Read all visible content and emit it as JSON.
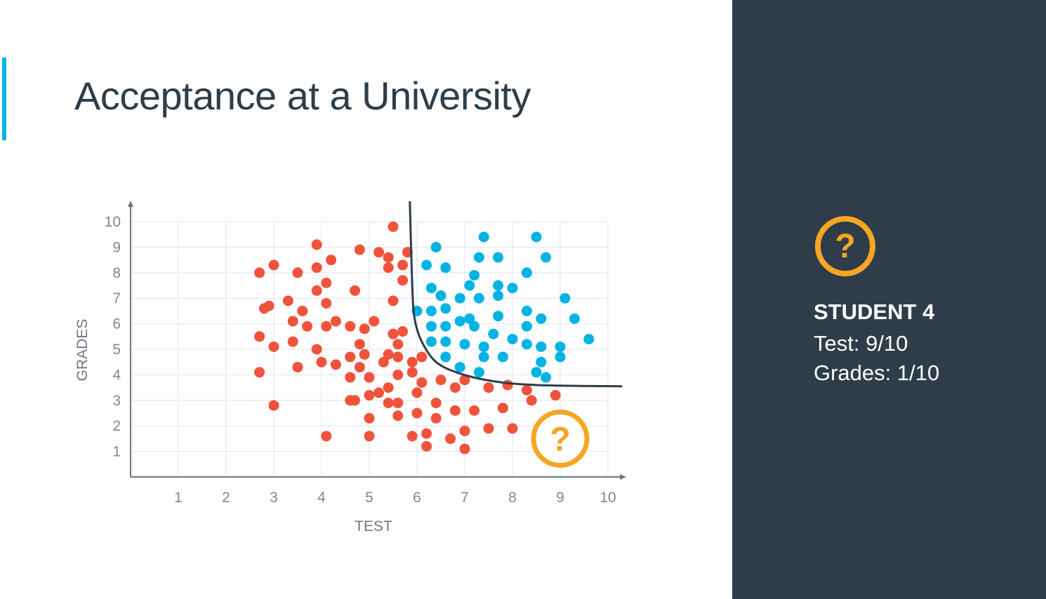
{
  "slide": {
    "title": "Acceptance at a University"
  },
  "side_panel": {
    "icon": "question-mark-circle-icon",
    "student_title": "STUDENT 4",
    "test_line": "Test: 9/10",
    "grades_line": "Grades: 1/10"
  },
  "colors": {
    "accepted": "#02b3e4",
    "rejected": "#f0533c",
    "highlight": "#f6a623",
    "boundary": "#2e3d49",
    "panel": "#2e3d49",
    "axis_text": "#7b8a99",
    "grid": "#dde4ea"
  },
  "chart_data": {
    "type": "scatter",
    "xlabel": "TEST",
    "ylabel": "GRADES",
    "xlim": [
      0,
      10
    ],
    "ylim": [
      0,
      10
    ],
    "x_ticks": [
      "1",
      "2",
      "3",
      "4",
      "5",
      "6",
      "7",
      "8",
      "9",
      "10"
    ],
    "y_ticks": [
      "1",
      "2",
      "3",
      "4",
      "5",
      "6",
      "7",
      "8",
      "9",
      "10"
    ],
    "grid": true,
    "series": [
      {
        "color": "#f0533c",
        "points": [
          [
            5.5,
            9.8
          ],
          [
            3.9,
            9.1
          ],
          [
            4.8,
            8.9
          ],
          [
            5.2,
            8.8
          ],
          [
            5.4,
            8.6
          ],
          [
            5.8,
            8.8
          ],
          [
            4.2,
            8.5
          ],
          [
            2.7,
            8.0
          ],
          [
            3.0,
            8.3
          ],
          [
            3.5,
            8.0
          ],
          [
            3.9,
            8.2
          ],
          [
            5.4,
            8.2
          ],
          [
            5.7,
            8.3
          ],
          [
            4.1,
            7.6
          ],
          [
            4.7,
            7.3
          ],
          [
            5.7,
            7.7
          ],
          [
            3.9,
            7.3
          ],
          [
            3.3,
            6.9
          ],
          [
            2.8,
            6.6
          ],
          [
            2.9,
            6.7
          ],
          [
            3.6,
            6.5
          ],
          [
            4.1,
            6.8
          ],
          [
            5.5,
            6.9
          ],
          [
            3.4,
            6.1
          ],
          [
            3.7,
            5.9
          ],
          [
            4.1,
            5.9
          ],
          [
            4.3,
            6.1
          ],
          [
            4.6,
            5.9
          ],
          [
            4.9,
            5.8
          ],
          [
            5.1,
            6.1
          ],
          [
            3.9,
            5.0
          ],
          [
            2.7,
            5.5
          ],
          [
            3.0,
            5.1
          ],
          [
            3.4,
            5.3
          ],
          [
            4.8,
            5.2
          ],
          [
            5.5,
            5.6
          ],
          [
            5.6,
            5.2
          ],
          [
            5.7,
            5.7
          ],
          [
            3.5,
            4.3
          ],
          [
            4.0,
            4.5
          ],
          [
            4.3,
            4.4
          ],
          [
            4.6,
            4.7
          ],
          [
            4.9,
            4.8
          ],
          [
            5.3,
            4.5
          ],
          [
            5.4,
            4.8
          ],
          [
            5.6,
            4.7
          ],
          [
            5.9,
            4.5
          ],
          [
            6.1,
            4.7
          ],
          [
            2.7,
            4.1
          ],
          [
            4.6,
            3.9
          ],
          [
            4.8,
            4.3
          ],
          [
            5.0,
            3.9
          ],
          [
            5.4,
            3.5
          ],
          [
            5.6,
            4.0
          ],
          [
            5.9,
            4.1
          ],
          [
            6.1,
            3.7
          ],
          [
            6.5,
            3.8
          ],
          [
            6.8,
            3.5
          ],
          [
            7.0,
            3.8
          ],
          [
            4.6,
            3.0
          ],
          [
            4.7,
            3.0
          ],
          [
            5.0,
            3.2
          ],
          [
            5.2,
            3.3
          ],
          [
            5.4,
            2.9
          ],
          [
            5.6,
            2.9
          ],
          [
            6.0,
            3.3
          ],
          [
            7.5,
            3.5
          ],
          [
            7.9,
            3.6
          ],
          [
            8.3,
            3.4
          ],
          [
            8.4,
            3.0
          ],
          [
            8.9,
            3.2
          ],
          [
            3.0,
            2.8
          ],
          [
            5.0,
            2.3
          ],
          [
            5.6,
            2.4
          ],
          [
            6.0,
            2.5
          ],
          [
            6.4,
            2.9
          ],
          [
            6.4,
            2.3
          ],
          [
            6.8,
            2.6
          ],
          [
            7.2,
            2.6
          ],
          [
            7.8,
            2.7
          ],
          [
            4.1,
            1.6
          ],
          [
            5.0,
            1.6
          ],
          [
            5.9,
            1.6
          ],
          [
            6.2,
            1.7
          ],
          [
            6.2,
            1.2
          ],
          [
            6.7,
            1.5
          ],
          [
            7.0,
            1.8
          ],
          [
            7.0,
            1.1
          ],
          [
            7.5,
            1.9
          ],
          [
            8.0,
            1.9
          ]
        ]
      },
      {
        "color": "#02b3e4",
        "points": [
          [
            7.4,
            9.4
          ],
          [
            8.5,
            9.4
          ],
          [
            6.4,
            9.0
          ],
          [
            7.3,
            8.6
          ],
          [
            7.7,
            8.6
          ],
          [
            8.7,
            8.6
          ],
          [
            6.2,
            8.3
          ],
          [
            6.6,
            8.2
          ],
          [
            7.2,
            7.9
          ],
          [
            8.3,
            8.0
          ],
          [
            6.3,
            7.4
          ],
          [
            7.1,
            7.5
          ],
          [
            7.7,
            7.5
          ],
          [
            8.0,
            7.4
          ],
          [
            6.5,
            7.1
          ],
          [
            6.9,
            7.0
          ],
          [
            7.3,
            7.0
          ],
          [
            7.7,
            7.1
          ],
          [
            9.1,
            7.0
          ],
          [
            6.0,
            6.5
          ],
          [
            6.3,
            6.5
          ],
          [
            6.6,
            6.6
          ],
          [
            7.1,
            6.2
          ],
          [
            7.7,
            6.3
          ],
          [
            8.3,
            6.5
          ],
          [
            8.6,
            6.2
          ],
          [
            9.3,
            6.2
          ],
          [
            6.3,
            5.9
          ],
          [
            6.6,
            5.9
          ],
          [
            6.9,
            6.1
          ],
          [
            7.2,
            5.9
          ],
          [
            8.3,
            5.9
          ],
          [
            6.3,
            5.3
          ],
          [
            6.6,
            5.3
          ],
          [
            7.0,
            5.2
          ],
          [
            7.4,
            5.1
          ],
          [
            7.6,
            5.6
          ],
          [
            8.0,
            5.4
          ],
          [
            8.3,
            5.2
          ],
          [
            8.6,
            5.1
          ],
          [
            9.0,
            5.1
          ],
          [
            9.6,
            5.4
          ],
          [
            6.6,
            4.7
          ],
          [
            7.4,
            4.7
          ],
          [
            7.8,
            4.7
          ],
          [
            8.6,
            4.5
          ],
          [
            9.0,
            4.7
          ],
          [
            6.9,
            4.3
          ],
          [
            7.3,
            4.1
          ],
          [
            8.5,
            4.1
          ],
          [
            8.7,
            3.9
          ]
        ]
      }
    ],
    "highlighted_point": [
      9,
      1.5
    ],
    "boundary": [
      [
        5.85,
        10.8
      ],
      [
        5.9,
        7.5
      ],
      [
        5.95,
        6.2
      ],
      [
        6.1,
        5.3
      ],
      [
        6.4,
        4.5
      ],
      [
        6.9,
        4.05
      ],
      [
        7.6,
        3.75
      ],
      [
        8.5,
        3.6
      ],
      [
        10.3,
        3.55
      ]
    ]
  }
}
